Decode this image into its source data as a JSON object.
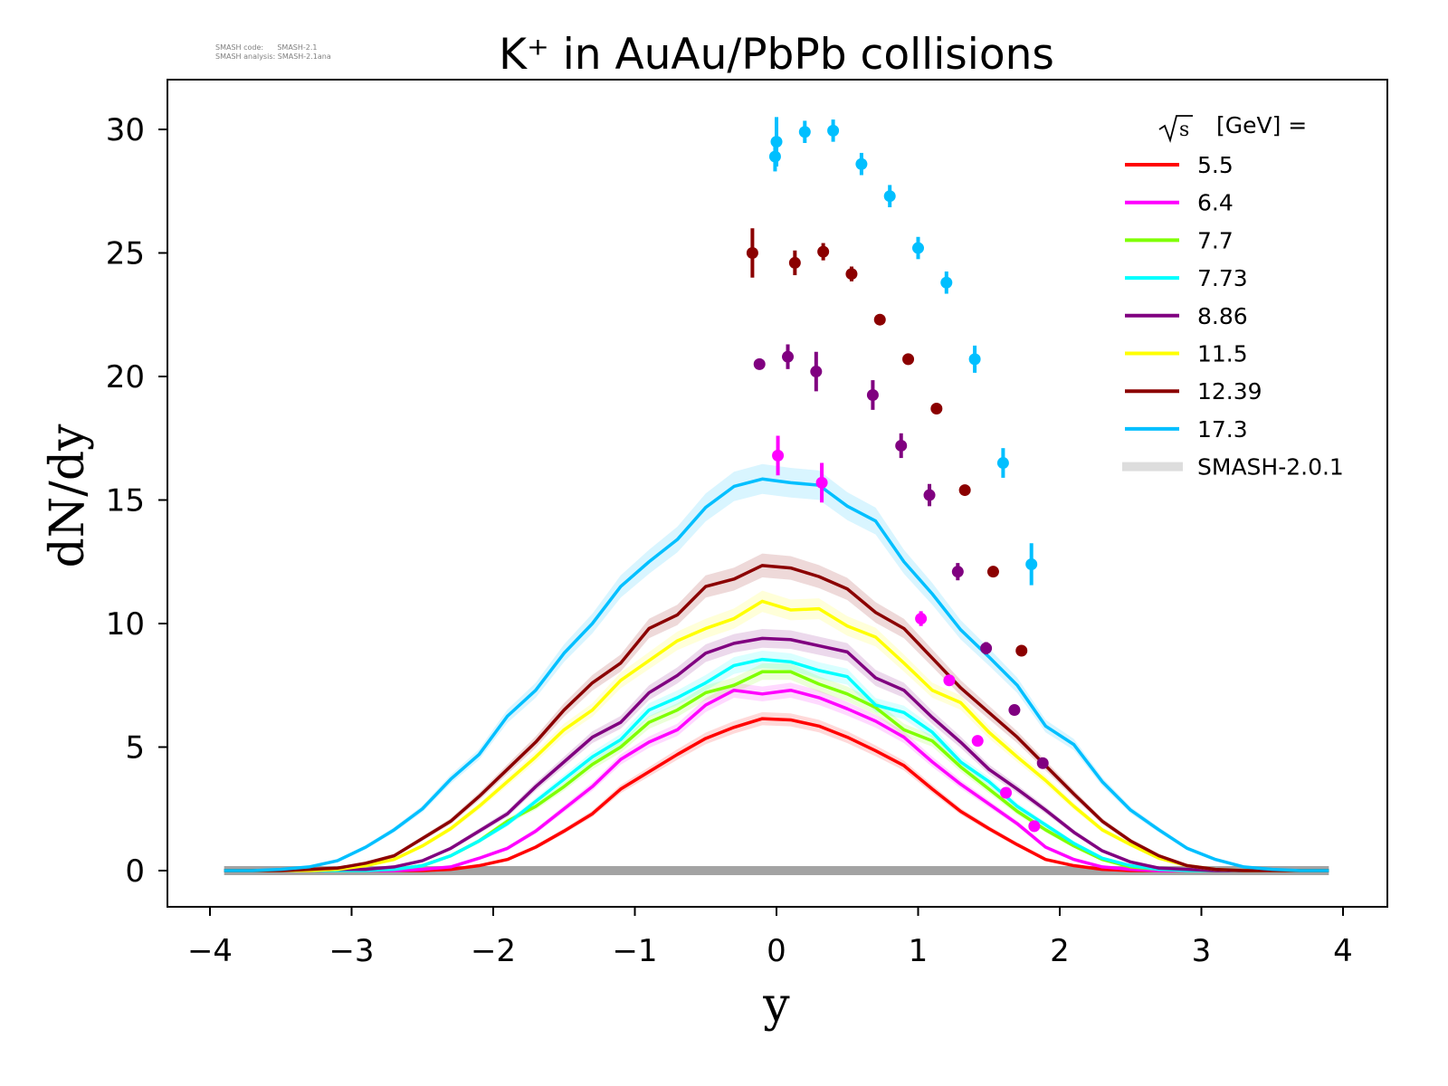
{
  "meta": {
    "code_label": "SMASH code:",
    "code_value": "SMASH-2.1",
    "analysis_label": "SMASH analysis:",
    "analysis_value": "SMASH-2.1ana"
  },
  "chart_data": {
    "type": "line",
    "title": "K⁺ in AuAu/PbPb collisions",
    "xlabel": "y",
    "ylabel": "dN/dy",
    "xlim": [
      -4.3,
      4.3
    ],
    "ylim": [
      -1.5,
      32
    ],
    "xticks": [
      -4,
      -3,
      -2,
      -1,
      0,
      1,
      2,
      3,
      4
    ],
    "xtick_labels": [
      "−4",
      "−3",
      "−2",
      "−1",
      "0",
      "1",
      "2",
      "3",
      "4"
    ],
    "yticks": [
      0,
      5,
      10,
      15,
      20,
      25,
      30
    ],
    "ytick_labels": [
      "0",
      "5",
      "10",
      "15",
      "20",
      "25",
      "30"
    ],
    "grid": false,
    "legend": {
      "placement": "top-right",
      "title_sqrt": "s",
      "title_rest": "[GeV] =",
      "model_label": "SMASH-2.0.1",
      "model_color": "#dddddd"
    },
    "x": [
      -3.9,
      -3.7,
      -3.5,
      -3.3,
      -3.1,
      -2.9,
      -2.7,
      -2.5,
      -2.3,
      -2.1,
      -1.9,
      -1.7,
      -1.5,
      -1.3,
      -1.1,
      -0.9,
      -0.7,
      -0.5,
      -0.3,
      -0.1,
      0.1,
      0.3,
      0.5,
      0.7,
      0.9,
      1.1,
      1.3,
      1.5,
      1.7,
      1.9,
      2.1,
      2.3,
      2.5,
      2.7,
      2.9,
      3.1,
      3.3,
      3.5,
      3.7,
      3.9
    ],
    "series": [
      {
        "name": "5.5",
        "color": "#ff0000",
        "values": [
          0,
          0,
          0,
          0,
          0,
          0,
          0,
          0,
          0.05,
          0.2,
          0.45,
          0.95,
          1.6,
          2.3,
          3.3,
          4.0,
          4.7,
          5.35,
          5.8,
          6.15,
          6.1,
          5.85,
          5.4,
          4.85,
          4.25,
          3.3,
          2.4,
          1.7,
          1.05,
          0.45,
          0.2,
          0.05,
          0,
          0,
          0,
          0,
          0,
          0,
          0,
          0
        ]
      },
      {
        "name": "6.4",
        "color": "#ff00ff",
        "values": [
          0,
          0,
          0,
          0,
          0,
          0,
          0,
          0.05,
          0.15,
          0.5,
          0.9,
          1.6,
          2.5,
          3.4,
          4.5,
          5.2,
          5.7,
          6.7,
          7.3,
          7.15,
          7.3,
          7.0,
          6.55,
          6.05,
          5.4,
          4.4,
          3.5,
          2.7,
          1.9,
          0.95,
          0.45,
          0.15,
          0.05,
          0,
          0,
          0,
          0,
          0,
          0,
          0
        ]
      },
      {
        "name": "7.7",
        "color": "#7fff00",
        "values": [
          0,
          0,
          0,
          0,
          0,
          0,
          0.05,
          0.2,
          0.6,
          1.2,
          2.0,
          2.6,
          3.4,
          4.3,
          5.0,
          6.0,
          6.5,
          7.2,
          7.5,
          8.05,
          8.05,
          7.55,
          7.15,
          6.6,
          5.7,
          5.25,
          4.2,
          3.3,
          2.4,
          1.65,
          1.0,
          0.45,
          0.15,
          0.05,
          0,
          0,
          0,
          0,
          0,
          0
        ]
      },
      {
        "name": "7.73",
        "color": "#00ffff",
        "values": [
          0,
          0,
          0,
          0,
          0,
          0,
          0.05,
          0.2,
          0.6,
          1.2,
          1.9,
          2.8,
          3.7,
          4.6,
          5.3,
          6.5,
          7.0,
          7.6,
          8.3,
          8.55,
          8.45,
          8.1,
          7.85,
          6.7,
          6.4,
          5.6,
          4.4,
          3.6,
          2.6,
          1.85,
          1.1,
          0.5,
          0.2,
          0.05,
          0,
          0,
          0,
          0,
          0,
          0
        ]
      },
      {
        "name": "8.86",
        "color": "#800080",
        "values": [
          0,
          0,
          0,
          0,
          0.05,
          0.05,
          0.15,
          0.4,
          0.9,
          1.6,
          2.3,
          3.4,
          4.4,
          5.4,
          6.0,
          7.2,
          7.9,
          8.8,
          9.2,
          9.4,
          9.35,
          9.1,
          8.85,
          7.8,
          7.3,
          6.2,
          5.2,
          4.1,
          3.3,
          2.45,
          1.55,
          0.8,
          0.35,
          0.1,
          0.05,
          0,
          0,
          0,
          0,
          0
        ]
      },
      {
        "name": "11.5",
        "color": "#ffff00",
        "values": [
          0,
          0,
          0,
          0,
          0.05,
          0.2,
          0.45,
          1.0,
          1.7,
          2.6,
          3.6,
          4.6,
          5.7,
          6.5,
          7.7,
          8.5,
          9.3,
          9.8,
          10.2,
          10.9,
          10.55,
          10.6,
          9.9,
          9.45,
          8.4,
          7.3,
          6.8,
          5.6,
          4.6,
          3.65,
          2.6,
          1.65,
          1.05,
          0.5,
          0.2,
          0.05,
          0,
          0,
          0,
          0
        ]
      },
      {
        "name": "12.39",
        "color": "#8b0000",
        "values": [
          0,
          0,
          0,
          0.05,
          0.1,
          0.3,
          0.6,
          1.3,
          2.0,
          3.0,
          4.1,
          5.2,
          6.5,
          7.6,
          8.4,
          9.8,
          10.35,
          11.5,
          11.8,
          12.35,
          12.25,
          11.9,
          11.4,
          10.45,
          9.8,
          8.6,
          7.4,
          6.4,
          5.4,
          4.25,
          3.1,
          2.0,
          1.2,
          0.6,
          0.2,
          0.05,
          0,
          0,
          0,
          0
        ]
      },
      {
        "name": "17.3",
        "color": "#00bfff",
        "values": [
          0,
          0,
          0.05,
          0.15,
          0.4,
          0.95,
          1.65,
          2.5,
          3.7,
          4.7,
          6.25,
          7.3,
          8.8,
          10.0,
          11.5,
          12.5,
          13.4,
          14.7,
          15.55,
          15.85,
          15.7,
          15.6,
          14.75,
          14.15,
          12.5,
          11.2,
          9.75,
          8.65,
          7.5,
          5.85,
          5.1,
          3.6,
          2.45,
          1.65,
          0.9,
          0.45,
          0.15,
          0.05,
          0,
          0
        ]
      }
    ],
    "experimental_points": [
      {
        "energy": "17.3",
        "color": "#00bfff",
        "x": [
          0.0,
          -0.01,
          0.2,
          0.4,
          0.6,
          0.8,
          1.0,
          1.2,
          1.4,
          1.6,
          1.8
        ],
        "y": [
          29.5,
          28.9,
          29.9,
          29.95,
          28.6,
          27.3,
          25.2,
          23.8,
          20.7,
          16.5,
          12.4
        ],
        "err": [
          1.0,
          0.6,
          0.45,
          0.45,
          0.45,
          0.45,
          0.45,
          0.45,
          0.55,
          0.6,
          0.85
        ]
      },
      {
        "energy": "12.39",
        "color": "#8b0000",
        "x": [
          -0.17,
          0.13,
          0.33,
          0.53,
          0.73,
          0.93,
          1.13,
          1.33,
          1.53,
          1.73
        ],
        "y": [
          25.0,
          24.6,
          25.05,
          24.15,
          22.3,
          20.7,
          18.7,
          15.4,
          12.1,
          8.9
        ],
        "err": [
          1.0,
          0.5,
          0.35,
          0.3,
          0.2,
          0.2,
          0.15,
          0.15,
          0.15,
          0.15
        ]
      },
      {
        "energy": "8.86",
        "color": "#800080",
        "x": [
          -0.12,
          0.08,
          0.28,
          0.68,
          0.88,
          1.08,
          1.28,
          1.48,
          1.68,
          1.88
        ],
        "y": [
          20.5,
          20.8,
          20.2,
          19.25,
          17.2,
          15.2,
          12.1,
          9.0,
          6.5,
          4.35
        ],
        "err": [
          0.15,
          0.5,
          0.8,
          0.6,
          0.5,
          0.45,
          0.35,
          0.25,
          0.15,
          0.15
        ]
      },
      {
        "energy": "6.4",
        "color": "#ff00ff",
        "x": [
          0.01,
          0.32,
          1.02,
          1.22,
          1.42,
          1.62,
          1.82
        ],
        "y": [
          16.8,
          15.7,
          10.2,
          7.7,
          5.25,
          3.15,
          1.8
        ],
        "err": [
          0.8,
          0.8,
          0.3,
          0.15,
          0.15,
          0.15,
          0.15
        ]
      }
    ]
  }
}
